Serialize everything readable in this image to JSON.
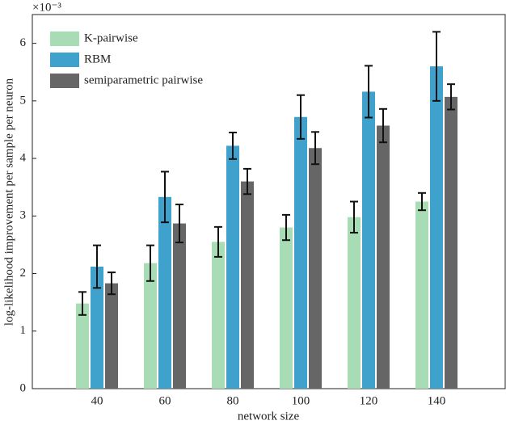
{
  "chart_data": {
    "type": "bar",
    "x_label": "network size",
    "y_label": "log-likelihood improvement per sample per neuron",
    "y_multiplier": "×10⁻³",
    "categories": [
      "40",
      "60",
      "80",
      "100",
      "120",
      "140"
    ],
    "series": [
      {
        "name": "K-pairwise",
        "color": "#a8dcb5",
        "values": [
          1.48,
          2.18,
          2.55,
          2.8,
          2.98,
          3.25
        ],
        "errors": [
          0.2,
          0.31,
          0.26,
          0.22,
          0.27,
          0.15
        ]
      },
      {
        "name": "RBM",
        "color": "#3fa2cc",
        "values": [
          2.12,
          3.33,
          4.22,
          4.72,
          5.16,
          5.6
        ],
        "errors": [
          0.37,
          0.44,
          0.23,
          0.38,
          0.45,
          0.6
        ]
      },
      {
        "name": "semiparametric pairwise",
        "color": "#666666",
        "values": [
          1.83,
          2.87,
          3.6,
          4.18,
          4.57,
          5.07
        ],
        "errors": [
          0.19,
          0.33,
          0.22,
          0.28,
          0.29,
          0.22
        ]
      }
    ],
    "ylim": [
      0,
      6.5
    ],
    "yticks": [
      0,
      1,
      2,
      3,
      4,
      5,
      6
    ],
    "legend": "top-left"
  }
}
